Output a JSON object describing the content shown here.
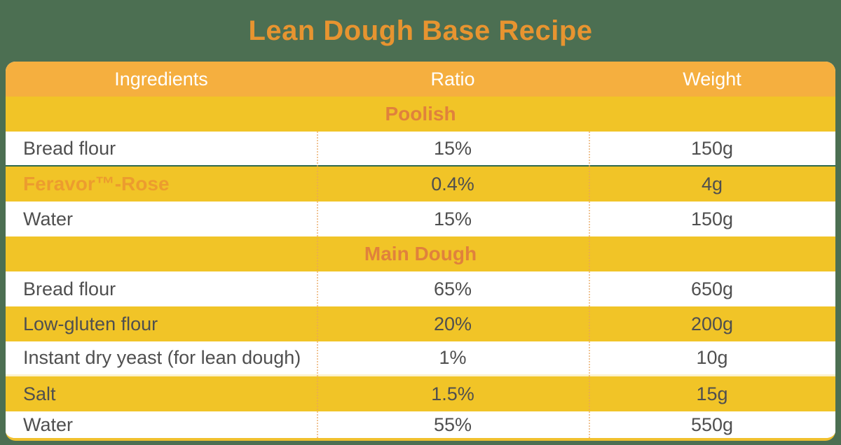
{
  "title": "Lean Dough Base Recipe",
  "table": {
    "headers": [
      "Ingredients",
      "Ratio",
      "Weight"
    ],
    "sections": [
      {
        "name": "Poolish",
        "rows": [
          {
            "ingredient": "Bread flour",
            "ratio": "15%",
            "weight": "150g"
          },
          {
            "ingredient": "Feravor™-Rose",
            "ratio": "0.4%",
            "weight": "4g"
          },
          {
            "ingredient": "Water",
            "ratio": "15%",
            "weight": "150g"
          }
        ]
      },
      {
        "name": "Main Dough",
        "rows": [
          {
            "ingredient": "Bread flour",
            "ratio": "65%",
            "weight": "650g"
          },
          {
            "ingredient": "Low-gluten flour",
            "ratio": "20%",
            "weight": "200g"
          },
          {
            "ingredient": "Instant dry yeast (for lean dough)",
            "ratio": "1%",
            "weight": "10g"
          },
          {
            "ingredient": "Salt",
            "ratio": "1.5%",
            "weight": "15g"
          },
          {
            "ingredient": "Water",
            "ratio": "55%",
            "weight": "550g"
          }
        ]
      }
    ]
  },
  "colors": {
    "background_green": "#4c6f52",
    "header_orange": "#f5af3f",
    "row_yellow": "#f1c427",
    "bottom_border_yellow": "#f0c02e",
    "title_orange": "#e79430",
    "section_label_orange": "#e0813c",
    "brand_orange": "#ec9c2e",
    "text_gray": "#4f4f4f",
    "header_text_white": "#ffffff",
    "dark_separator_green": "#2f684c",
    "cream_separator": "#fcf2cd"
  }
}
